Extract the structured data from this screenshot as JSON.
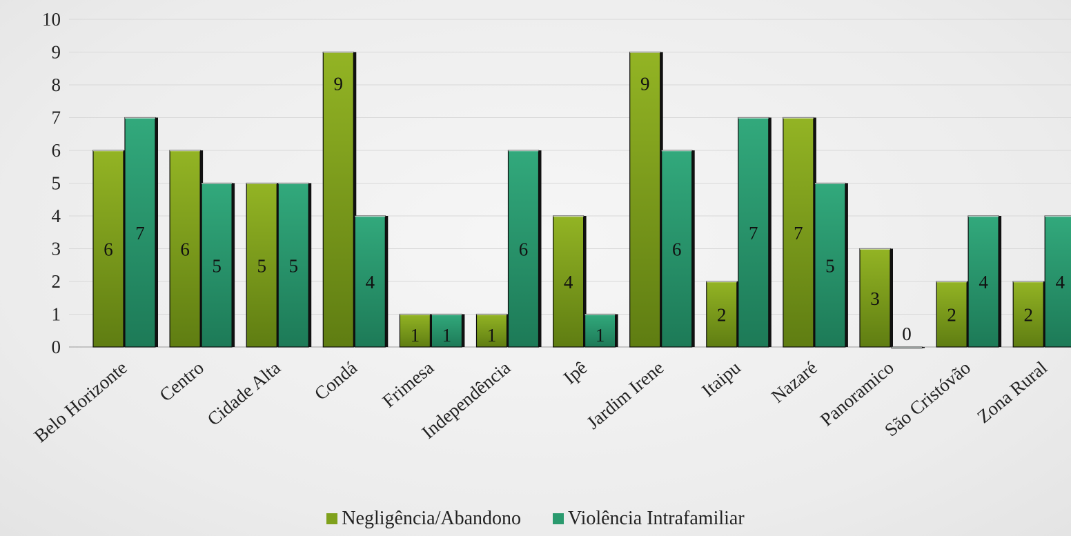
{
  "chart_data": {
    "type": "bar",
    "categories": [
      "Belo Horizonte",
      "Centro",
      "Cidade Alta",
      "Condá",
      "Frimesa",
      "Independência",
      "Ipê",
      "Jardim Irene",
      "Itaipu",
      "Nazaré",
      "Panoramico",
      "São Cristóvão",
      "Zona Rural"
    ],
    "series": [
      {
        "name": "Negligência/Abandono",
        "values": [
          6,
          6,
          5,
          9,
          1,
          1,
          4,
          9,
          2,
          7,
          3,
          2,
          2
        ],
        "color": "#7fa11c"
      },
      {
        "name": "Violência Intrafamiliar",
        "values": [
          7,
          5,
          5,
          4,
          1,
          6,
          1,
          6,
          7,
          5,
          0,
          4,
          4
        ],
        "color": "#2a9a6e"
      }
    ],
    "ylim": [
      0,
      10
    ],
    "yticks": [
      "0",
      "1",
      "2",
      "3",
      "4",
      "5",
      "6",
      "7",
      "8",
      "9",
      "10"
    ],
    "grid": true,
    "legend_position": "bottom"
  }
}
